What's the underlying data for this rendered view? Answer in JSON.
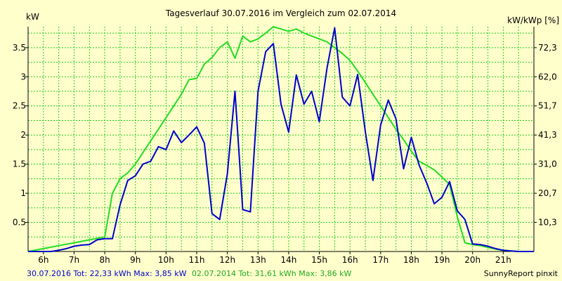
{
  "colors": {
    "background": "#ffffcc",
    "grid": "#22cc22",
    "axis": "#000000",
    "series_2016": "#0000cc",
    "series_2014": "#22dd22"
  },
  "chart_data": {
    "type": "line",
    "title": "Tagesverlauf 30.07.2016 im Vergleich zum 02.07.2014",
    "ylabel_left": "kW",
    "ylabel_right": "kW/kWp [%]",
    "xlim": [
      5.5,
      22.0
    ],
    "ylim": [
      0,
      3.86
    ],
    "x_ticks": [
      6,
      7,
      8,
      9,
      10,
      11,
      12,
      13,
      14,
      15,
      16,
      17,
      18,
      19,
      20,
      21
    ],
    "x_tick_labels": [
      "6h",
      "7h",
      "8h",
      "9h",
      "10h",
      "11h",
      "12h",
      "13h",
      "14h",
      "15h",
      "16h",
      "17h",
      "18h",
      "19h",
      "20h",
      "21h"
    ],
    "y_ticks": [
      0.5,
      1,
      1.5,
      2,
      2.5,
      3,
      3.5
    ],
    "y_tick_labels": [
      "0.5",
      "1",
      "1.5",
      "2",
      "2.5",
      "3",
      "3.5"
    ],
    "y_right_ticks": [
      0.5,
      1,
      1.5,
      2,
      2.5,
      3,
      3.5
    ],
    "y_right_tick_labels": [
      "10,3",
      "20,7",
      "31,0",
      "41,3",
      "51,7",
      "62,0",
      "72,3"
    ],
    "grid": true,
    "series": [
      {
        "name": "30.07.2016",
        "color": "#0000cc",
        "x": [
          5.5,
          6.25,
          6.5,
          6.75,
          7.0,
          7.25,
          7.5,
          7.75,
          8.0,
          8.25,
          8.5,
          8.75,
          9.0,
          9.25,
          9.5,
          9.75,
          10.0,
          10.25,
          10.5,
          10.75,
          11.0,
          11.25,
          11.5,
          11.75,
          12.0,
          12.25,
          12.5,
          12.75,
          13.0,
          13.25,
          13.5,
          13.75,
          14.0,
          14.25,
          14.5,
          14.75,
          15.0,
          15.25,
          15.5,
          15.75,
          16.0,
          16.25,
          16.5,
          16.75,
          17.0,
          17.25,
          17.5,
          17.75,
          18.0,
          18.25,
          18.5,
          18.75,
          19.0,
          19.25,
          19.5,
          19.75,
          20.0,
          20.25,
          20.5,
          20.75,
          21.0,
          21.25,
          21.5,
          22.0
        ],
        "y": [
          0,
          0,
          0.02,
          0.05,
          0.09,
          0.11,
          0.12,
          0.2,
          0.22,
          0.22,
          0.8,
          1.22,
          1.3,
          1.5,
          1.55,
          1.8,
          1.75,
          2.07,
          1.87,
          2.0,
          2.14,
          1.86,
          0.65,
          0.55,
          1.33,
          2.75,
          0.72,
          0.68,
          2.75,
          3.43,
          3.57,
          2.53,
          2.05,
          3.03,
          2.53,
          2.75,
          2.23,
          3.15,
          3.84,
          2.65,
          2.5,
          3.04,
          2.06,
          1.22,
          2.17,
          2.6,
          2.28,
          1.42,
          1.96,
          1.49,
          1.18,
          0.82,
          0.93,
          1.2,
          0.7,
          0.55,
          0.13,
          0.12,
          0.09,
          0.05,
          0.02,
          0.01,
          0,
          0
        ]
      },
      {
        "name": "02.07.2014",
        "color": "#22dd22",
        "x": [
          5.5,
          6.0,
          6.5,
          7.0,
          7.5,
          8.0,
          8.25,
          8.5,
          8.75,
          9.0,
          9.25,
          9.5,
          9.75,
          10.0,
          10.25,
          10.5,
          10.75,
          11.0,
          11.25,
          11.5,
          11.75,
          12.0,
          12.25,
          12.5,
          12.75,
          13.0,
          13.25,
          13.5,
          13.75,
          14.0,
          14.25,
          14.5,
          14.75,
          15.0,
          15.25,
          15.5,
          15.75,
          16.0,
          16.25,
          16.5,
          16.75,
          17.0,
          17.25,
          17.5,
          17.75,
          18.0,
          18.25,
          18.5,
          18.75,
          19.0,
          19.25,
          19.5,
          19.75,
          20.0,
          20.25,
          20.5,
          20.75,
          21.0,
          21.25,
          21.5,
          22.0
        ],
        "y": [
          0,
          0.05,
          0.1,
          0.15,
          0.2,
          0.25,
          1.0,
          1.25,
          1.35,
          1.5,
          1.7,
          1.9,
          2.1,
          2.3,
          2.5,
          2.7,
          2.95,
          2.97,
          3.22,
          3.33,
          3.5,
          3.6,
          3.32,
          3.7,
          3.6,
          3.65,
          3.75,
          3.86,
          3.82,
          3.78,
          3.82,
          3.75,
          3.7,
          3.65,
          3.6,
          3.5,
          3.4,
          3.28,
          3.1,
          2.9,
          2.7,
          2.5,
          2.3,
          2.1,
          1.92,
          1.72,
          1.55,
          1.48,
          1.4,
          1.28,
          1.15,
          0.6,
          0.15,
          0.12,
          0.1,
          0.07,
          0.04,
          0.02,
          0.01,
          0,
          0
        ]
      }
    ],
    "footer_left": [
      {
        "text": "30.07.2016 Tot: 22,33 kWh Max: 3,85 kW",
        "color": "#0000cc"
      },
      {
        "text": "02.07.2014 Tot: 31,61 kWh Max: 3,86 kW",
        "color": "#22aa22"
      }
    ],
    "footer_right": "SunnyReport pinxit"
  }
}
